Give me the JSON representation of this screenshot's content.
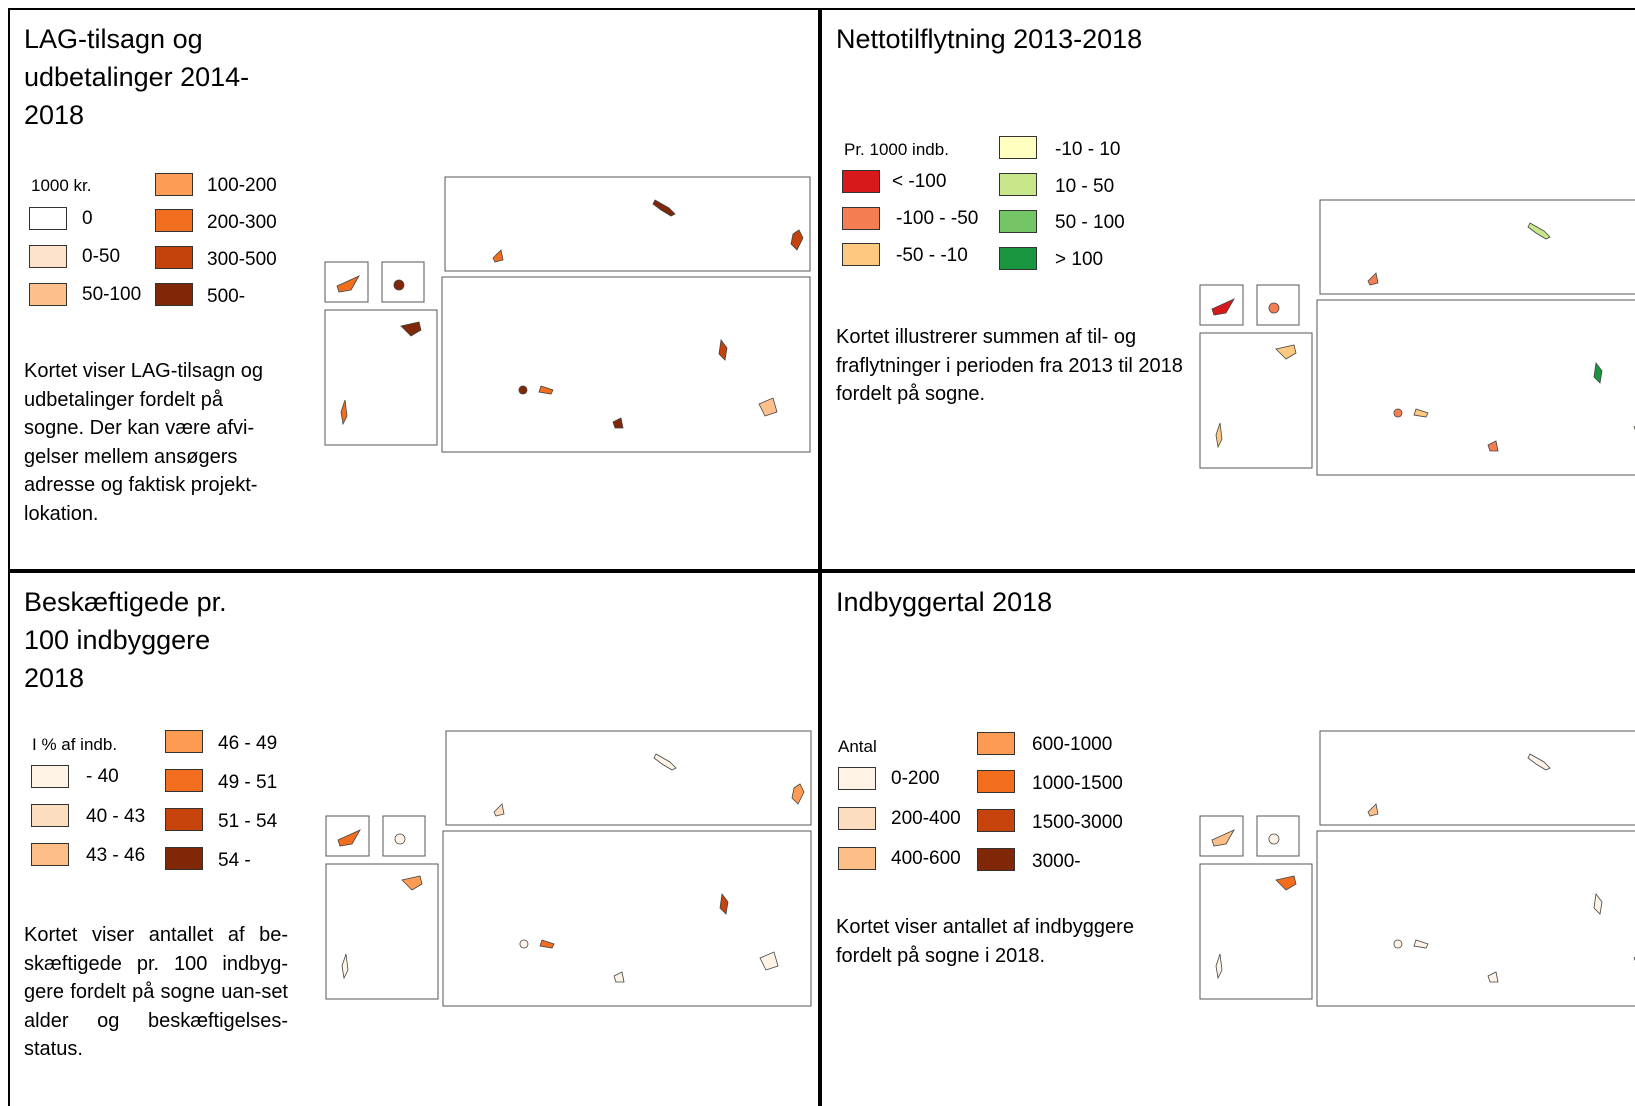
{
  "panels": [
    {
      "title": "LAG-tilsagn og udbetalinger 2014-2018",
      "legend_heading": "1000 kr.",
      "legend": [
        {
          "label": "0",
          "color": "#ffffff"
        },
        {
          "label": "0-50",
          "color": "#fde3cb"
        },
        {
          "label": "50-100",
          "color": "#fdc08d"
        },
        {
          "label": "100-200",
          "color": "#fd9c55"
        },
        {
          "label": "200-300",
          "color": "#f26e1f"
        },
        {
          "label": "300-500",
          "color": "#c4420c"
        },
        {
          "label": "500-",
          "color": "#7f2706"
        }
      ],
      "description": "Kortet viser LAG-tilsagn og udbetalinger fordelt på sogne. Der kan være afvi-gelser mellem ansøgers adresse og faktisk projekt-lokation."
    },
    {
      "title": "Nettotilflytning 2013-2018",
      "legend_heading": "Pr. 1000 indb.",
      "legend": [
        {
          "label": "< -100",
          "color": "#d7191c"
        },
        {
          "label": "-100 - -50",
          "color": "#f57d52"
        },
        {
          "label": "-50 - -10",
          "color": "#fdc980"
        },
        {
          "label": "-10 - 10",
          "color": "#ffffbf"
        },
        {
          "label": "10 - 50",
          "color": "#c7e78a"
        },
        {
          "label": "50 - 100",
          "color": "#74c565"
        },
        {
          "label": "> 100",
          "color": "#1a9641"
        }
      ],
      "description": "Kortet illustrerer summen af til- og fraflytninger i perioden fra 2013 til 2018 fordelt på sogne."
    },
    {
      "title": "Beskæftigede pr. 100 indbyggere 2018",
      "legend_heading": "I % af indb.",
      "legend": [
        {
          "label": "- 40",
          "color": "#fff3e6"
        },
        {
          "label": "40 - 43",
          "color": "#fdddc0"
        },
        {
          "label": "43 - 46",
          "color": "#fdbf87"
        },
        {
          "label": "46 - 49",
          "color": "#fd9b52"
        },
        {
          "label": "49 - 51",
          "color": "#f26d1e"
        },
        {
          "label": "51 - 54",
          "color": "#c6430c"
        },
        {
          "label": "54 -",
          "color": "#7f2706"
        }
      ],
      "description": "Kortet viser antallet af be-skæftigede pr. 100 indbyg-gere fordelt på sogne uan-set alder og beskæftigelses-status."
    },
    {
      "title": "Indbyggertal 2018",
      "legend_heading": "Antal",
      "legend": [
        {
          "label": "0-200",
          "color": "#fff3e6"
        },
        {
          "label": "200-400",
          "color": "#fdddc0"
        },
        {
          "label": "400-600",
          "color": "#fdbf87"
        },
        {
          "label": "600-1000",
          "color": "#fd9b52"
        },
        {
          "label": "1000-1500",
          "color": "#f26d1e"
        },
        {
          "label": "1500-3000",
          "color": "#c6430c"
        },
        {
          "label": "3000-",
          "color": "#7f2706"
        }
      ],
      "description": "Kortet viser antallet af indbyggere fordelt på sogne i 2018."
    }
  ]
}
